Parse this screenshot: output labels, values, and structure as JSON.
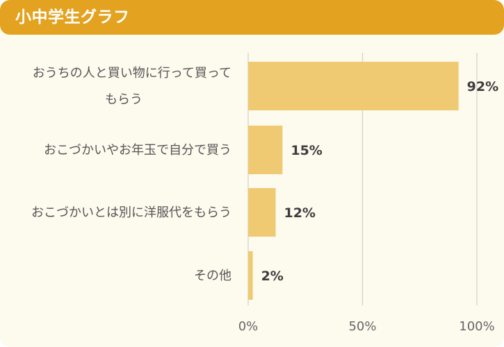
{
  "header": {
    "title": "小中学生グラフ"
  },
  "chart_data": {
    "type": "bar",
    "orientation": "horizontal",
    "categories": [
      [
        "おうちの人と買い物に行って買って",
        "もらう"
      ],
      [
        "おこづかいやお年玉で自分で買う"
      ],
      [
        "おこづかいとは別に洋服代をもらう"
      ],
      [
        "その他"
      ]
    ],
    "values": [
      92,
      15,
      12,
      2
    ],
    "value_labels": [
      "92%",
      "15%",
      "12%",
      "2%"
    ],
    "xlim": [
      0,
      100
    ],
    "xticks": [
      0,
      50,
      100
    ],
    "xtick_labels": [
      "0%",
      "50%",
      "100%"
    ],
    "grid": true,
    "colors": {
      "bar": "#f0ca73",
      "grid": "#d2d0c8",
      "header": "#e3a220",
      "background": "#fdfaee"
    }
  }
}
